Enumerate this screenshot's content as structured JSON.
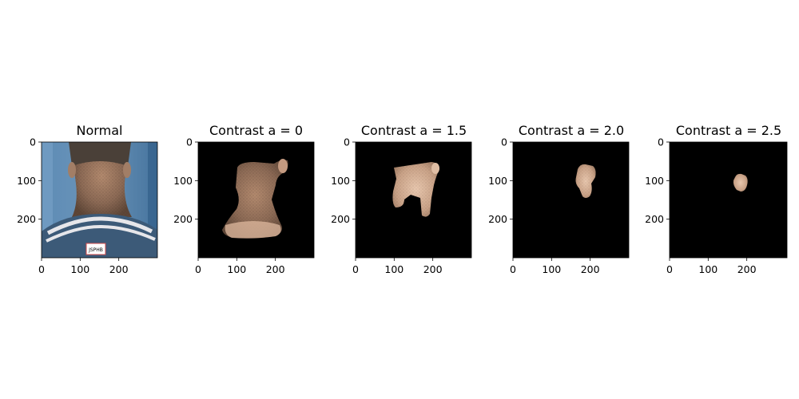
{
  "figure": {
    "panels": [
      {
        "title": "Normal",
        "kind": "photo",
        "x_ticks": [
          "0",
          "100",
          "200"
        ],
        "y_ticks": [
          "0",
          "100",
          "200"
        ]
      },
      {
        "title": "Contrast a = 0",
        "kind": "mask",
        "x_ticks": [
          "0",
          "100",
          "200"
        ],
        "y_ticks": [
          "0",
          "100",
          "200"
        ]
      },
      {
        "title": "Contrast a = 1.5",
        "kind": "mask",
        "x_ticks": [
          "0",
          "100",
          "200"
        ],
        "y_ticks": [
          "0",
          "100",
          "200"
        ]
      },
      {
        "title": "Contrast a = 2.0",
        "kind": "mask",
        "x_ticks": [
          "0",
          "100",
          "200"
        ],
        "y_ticks": [
          "0",
          "100",
          "200"
        ]
      },
      {
        "title": "Contrast a = 2.5",
        "kind": "mask",
        "x_ticks": [
          "0",
          "100",
          "200"
        ],
        "y_ticks": [
          "0",
          "100",
          "200"
        ]
      }
    ],
    "colors": {
      "mask_background": "#000000",
      "skin_light": "#d9b49a",
      "skin_mid": "#a27e66",
      "skin_dark": "#5e4637",
      "hair": "#4a4038",
      "photo_background": "#4f7ea8",
      "shirt": "#3c5a78",
      "collar_stripe": "#e6e6ea"
    },
    "photo_label": "JSPHB"
  }
}
